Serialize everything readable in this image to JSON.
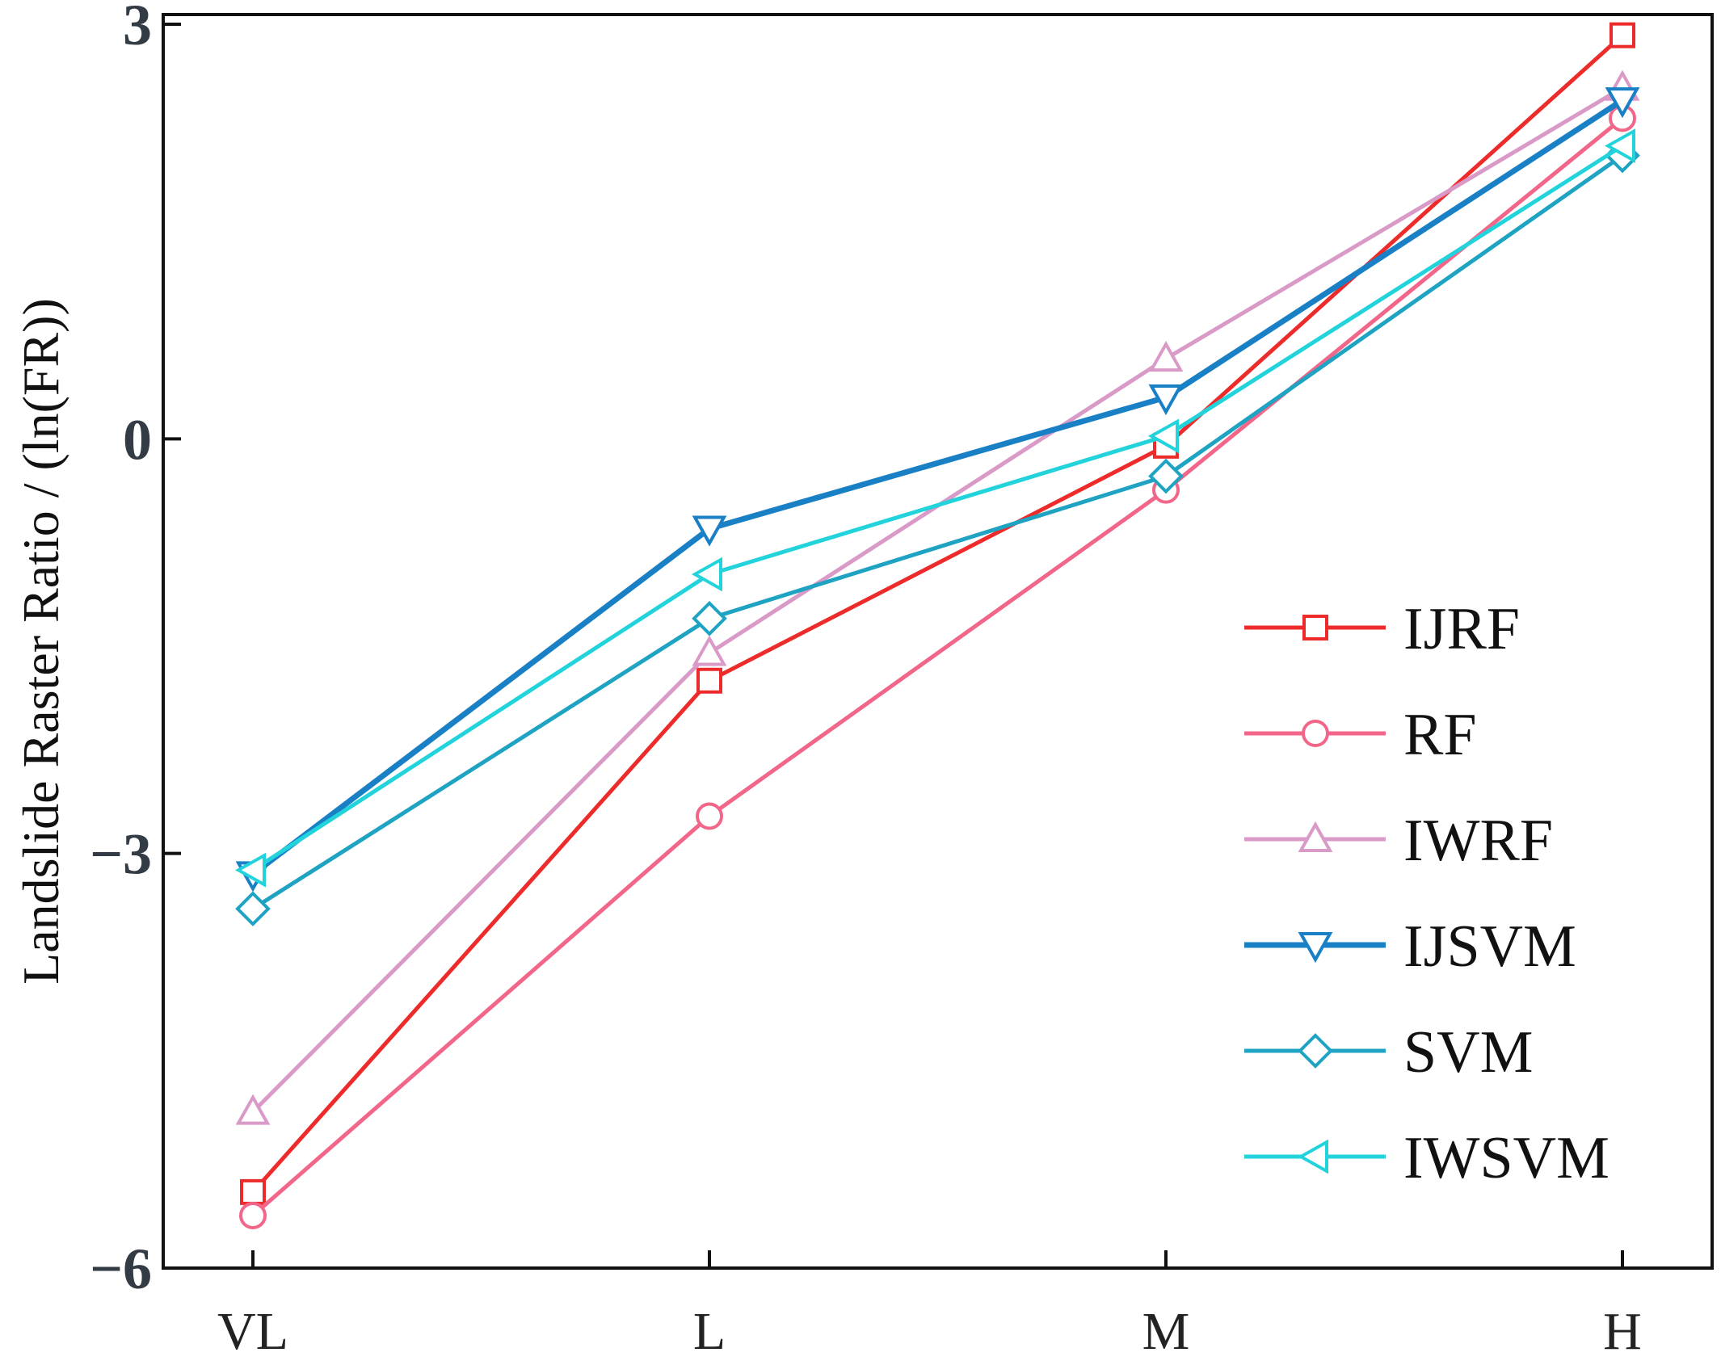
{
  "chart_data": {
    "type": "line",
    "title": "",
    "xlabel": "",
    "ylabel": "Landslide Raster Ratio / (ln(FR))",
    "categories": [
      "VL",
      "L",
      "M",
      "H"
    ],
    "yticks": [
      -6,
      -3,
      0,
      3
    ],
    "ytick_labels": [
      "−6",
      "−3",
      "0",
      "3"
    ],
    "ylim": [
      -6.0,
      3.07
    ],
    "grid": false,
    "legend_position": "right",
    "series": [
      {
        "name": "IJRF",
        "values": [
          -5.45,
          -1.75,
          -0.05,
          2.92
        ],
        "color": "#ee2b2b",
        "marker": "square",
        "stroke_width": 5
      },
      {
        "name": "RF",
        "values": [
          -5.62,
          -2.73,
          -0.37,
          2.32
        ],
        "color": "#f2668a",
        "marker": "circle",
        "stroke_width": 5
      },
      {
        "name": "IWRF",
        "values": [
          -4.87,
          -1.55,
          0.58,
          2.54
        ],
        "color": "#d99ac8",
        "marker": "triangle-up",
        "stroke_width": 5
      },
      {
        "name": "IJSVM",
        "values": [
          -3.15,
          -0.65,
          0.3,
          2.45
        ],
        "color": "#1a80c6",
        "marker": "triangle-down",
        "stroke_width": 7
      },
      {
        "name": "SVM",
        "values": [
          -3.4,
          -1.3,
          -0.27,
          2.05
        ],
        "color": "#1ea3c2",
        "marker": "diamond",
        "stroke_width": 5
      },
      {
        "name": "IWSVM",
        "values": [
          -3.12,
          -0.98,
          0.02,
          2.12
        ],
        "color": "#22d3dc",
        "marker": "triangle-left",
        "stroke_width": 5
      }
    ]
  }
}
